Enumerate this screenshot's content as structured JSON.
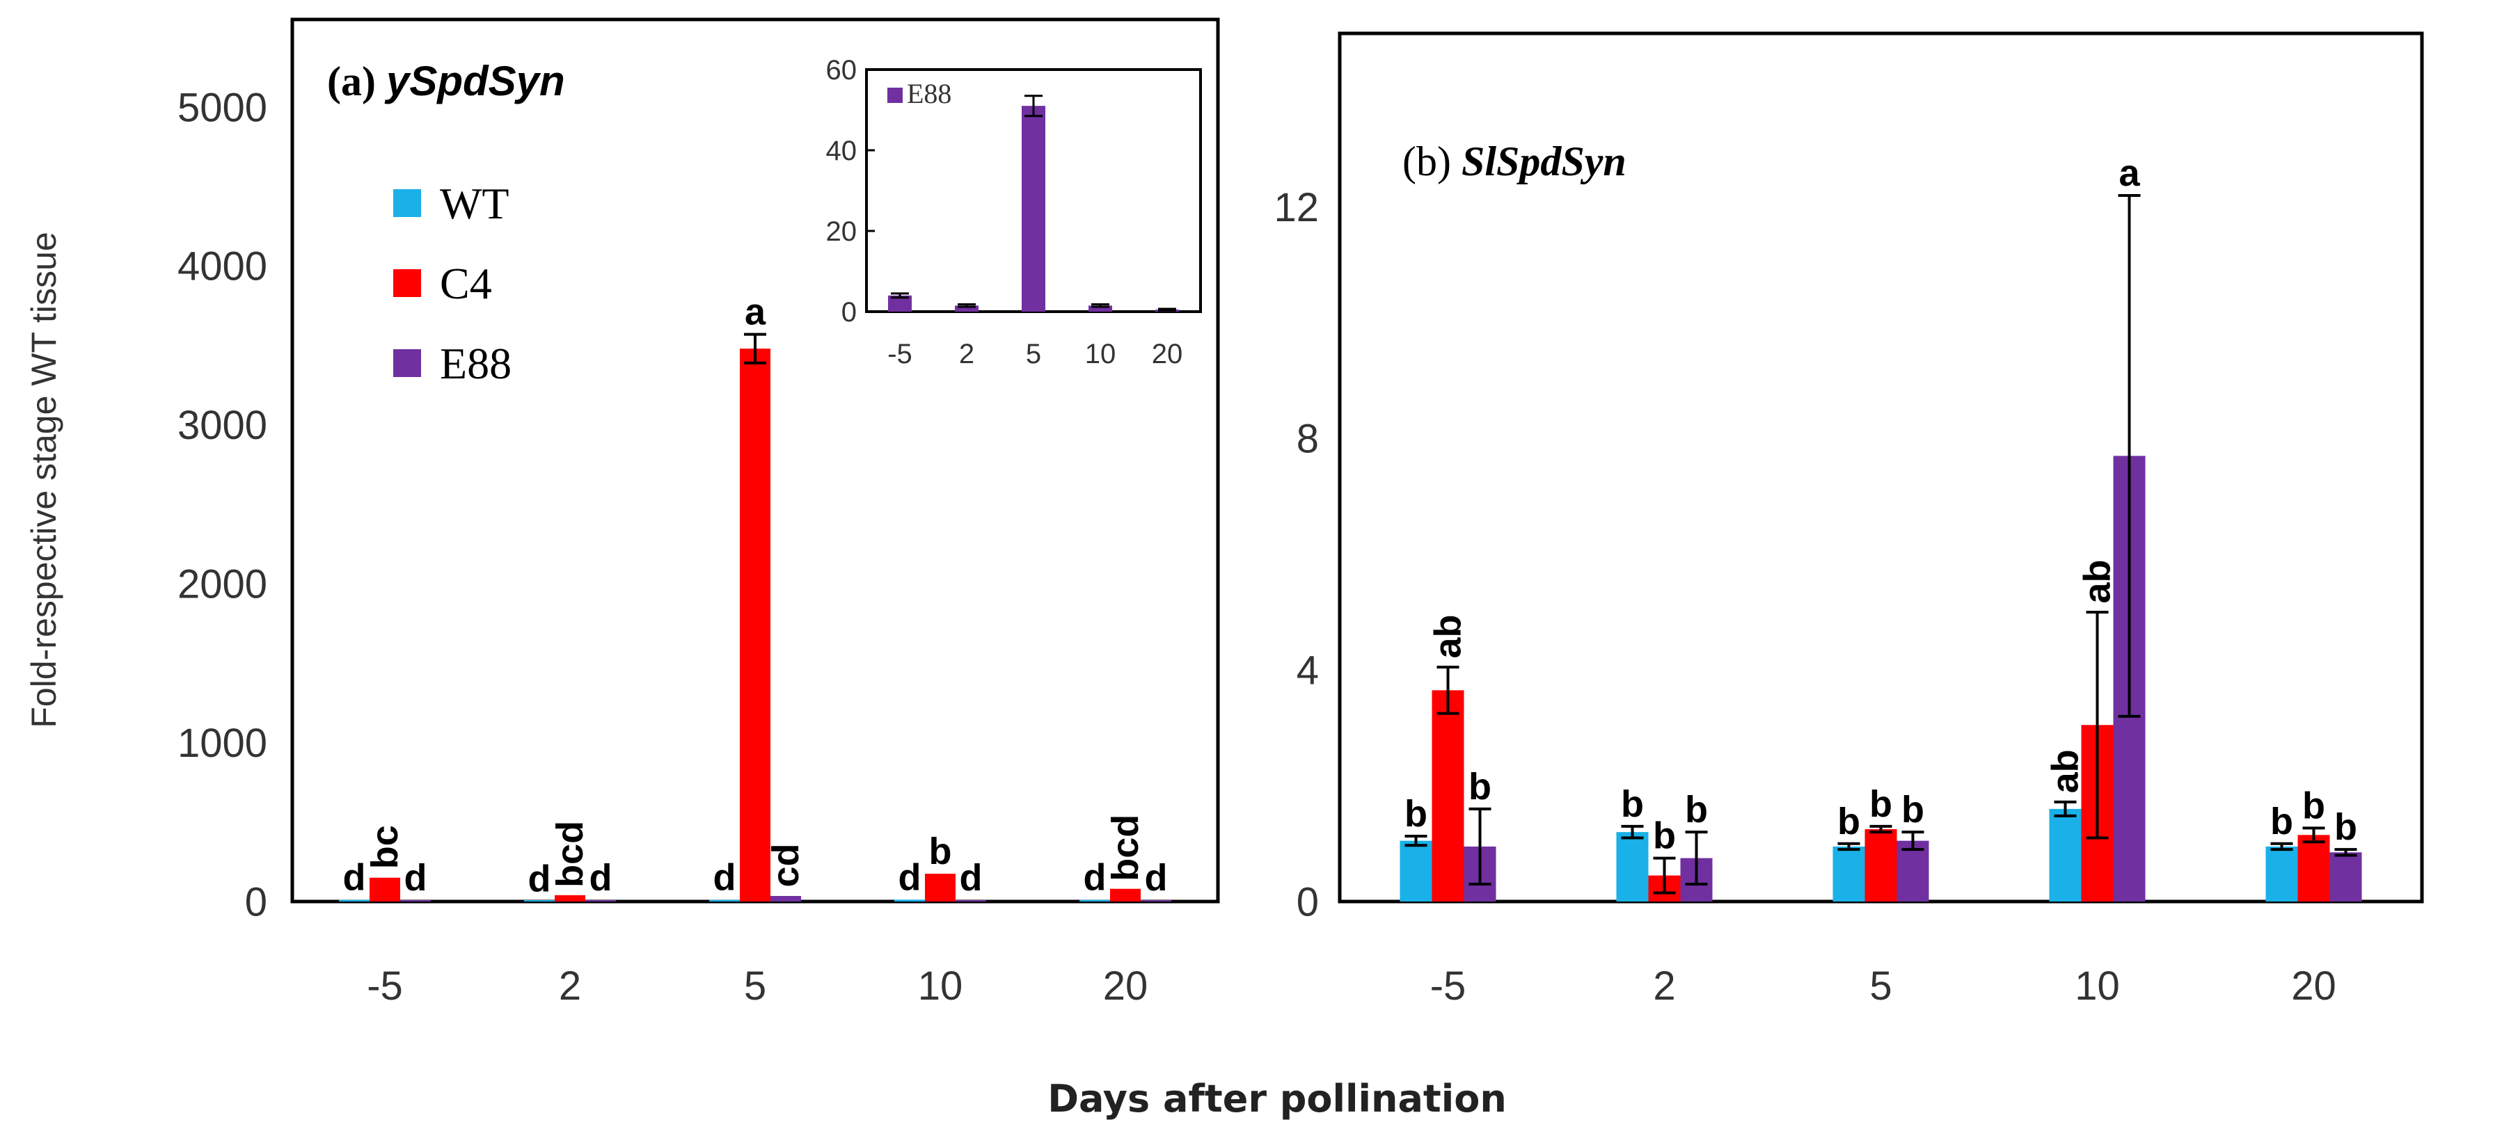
{
  "x_axis_label": "Days after pollination",
  "y_axis_label": "Fold-respective stage WT tissue",
  "colors": {
    "WT": "#1ab0e8",
    "C4": "#ff0000",
    "E88": "#7030a0"
  },
  "chart_data": [
    {
      "type": "bar",
      "panel": "(a)",
      "gene": "ySpdSyn",
      "categories": [
        "-5",
        "2",
        "5",
        "10",
        "20"
      ],
      "ylim": [
        0,
        5000
      ],
      "yticks": [
        "0",
        "1000",
        "2000",
        "3000",
        "4000",
        "5000"
      ],
      "legend": [
        "WT",
        "C4",
        "E88"
      ],
      "legend_position": "upper-left",
      "series": [
        {
          "name": "WT",
          "values": [
            10,
            3,
            10,
            12,
            10
          ],
          "errors": [
            0,
            0,
            0,
            0,
            0
          ],
          "letters": [
            "d",
            "d",
            "d",
            "d",
            "d"
          ]
        },
        {
          "name": "C4",
          "values": [
            150,
            40,
            3480,
            175,
            80
          ],
          "errors": [
            0,
            0,
            90,
            0,
            0
          ],
          "letters": [
            "bc",
            "bcd",
            "a",
            "b",
            "bcd"
          ]
        },
        {
          "name": "E88",
          "values": [
            8,
            8,
            35,
            8,
            8
          ],
          "errors": [
            0,
            0,
            0,
            0,
            0
          ],
          "letters": [
            "d",
            "d",
            "cd",
            "d",
            "d"
          ]
        }
      ],
      "inset": {
        "type": "bar",
        "categories": [
          "-5",
          "2",
          "5",
          "10",
          "20"
        ],
        "ylim": [
          0,
          60
        ],
        "yticks": [
          "0",
          "20",
          "40",
          "60"
        ],
        "legend": [
          "E88"
        ],
        "series": [
          {
            "name": "E88",
            "values": [
              4,
              1.5,
              51,
              1.5,
              0.5
            ],
            "errors": [
              0.5,
              0.3,
              2.5,
              0.3,
              0.2
            ]
          }
        ]
      }
    },
    {
      "type": "bar",
      "panel": "(b)",
      "gene": "SlSpdSyn",
      "categories": [
        "-5",
        "2",
        "5",
        "10",
        "20"
      ],
      "ylim": [
        0,
        15
      ],
      "yticks": [
        "0",
        "4",
        "8",
        "12"
      ],
      "series": [
        {
          "name": "WT",
          "values": [
            1.05,
            1.2,
            0.95,
            1.6,
            0.95
          ],
          "errors": [
            0.08,
            0.1,
            0.05,
            0.12,
            0.05
          ],
          "letters": [
            "b",
            "b",
            "b",
            "ab",
            "b"
          ]
        },
        {
          "name": "C4",
          "values": [
            3.65,
            0.45,
            1.25,
            3.05,
            1.15
          ],
          "errors": [
            0.4,
            0.3,
            0.05,
            1.95,
            0.12
          ],
          "letters": [
            "ab",
            "b",
            "b",
            "ab",
            "b"
          ]
        },
        {
          "name": "E88",
          "values": [
            0.95,
            0.75,
            1.05,
            7.7,
            0.85
          ],
          "errors": [
            0.65,
            0.45,
            0.15,
            4.5,
            0.05
          ],
          "letters": [
            "b",
            "b",
            "b",
            "a",
            "b"
          ]
        }
      ]
    }
  ]
}
